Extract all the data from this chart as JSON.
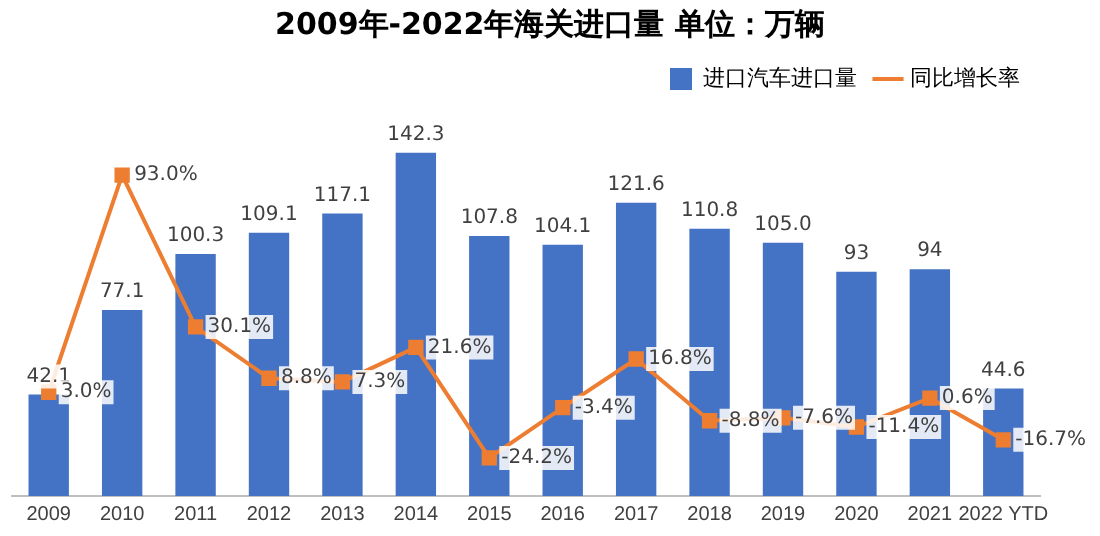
{
  "chart_data": {
    "type": "bar",
    "title": "2009年-2022年海关进口量  单位：万辆",
    "categories": [
      "2009",
      "2010",
      "2011",
      "2012",
      "2013",
      "2014",
      "2015",
      "2016",
      "2017",
      "2018",
      "2019",
      "2020",
      "2021",
      "2022 YTD"
    ],
    "series": [
      {
        "name": "进口汽车进口量",
        "color": "#4472c4",
        "values": [
          42.1,
          77.1,
          100.3,
          109.1,
          117.1,
          142.3,
          107.8,
          104.1,
          121.6,
          110.8,
          105.0,
          93,
          94,
          44.6
        ],
        "value_labels": [
          "42.1",
          "77.1",
          "100.3",
          "109.1",
          "117.1",
          "142.3",
          "107.8",
          "104.1",
          "121.6",
          "110.8",
          "105.0",
          "93",
          "94",
          "44.6"
        ]
      },
      {
        "name": "同比增长率",
        "type": "line",
        "axis": "y2",
        "color": "#ed7d31",
        "values": [
          3.0,
          93.0,
          30.1,
          8.8,
          7.3,
          21.6,
          -24.2,
          -3.4,
          16.8,
          -8.8,
          -7.6,
          -11.4,
          0.6,
          -16.7
        ],
        "value_labels": [
          "3.0%",
          "93.0%",
          "30.1%",
          "8.8%",
          "7.3%",
          "21.6%",
          "-24.2%",
          "-3.4%",
          "16.8%",
          "-8.8%",
          "-7.6%",
          "-11.4%",
          "0.6%",
          "-16.7%"
        ]
      }
    ],
    "legend": "top right",
    "marker": "square",
    "line_style": "solid",
    "grid": false,
    "tick_labels": "x"
  }
}
